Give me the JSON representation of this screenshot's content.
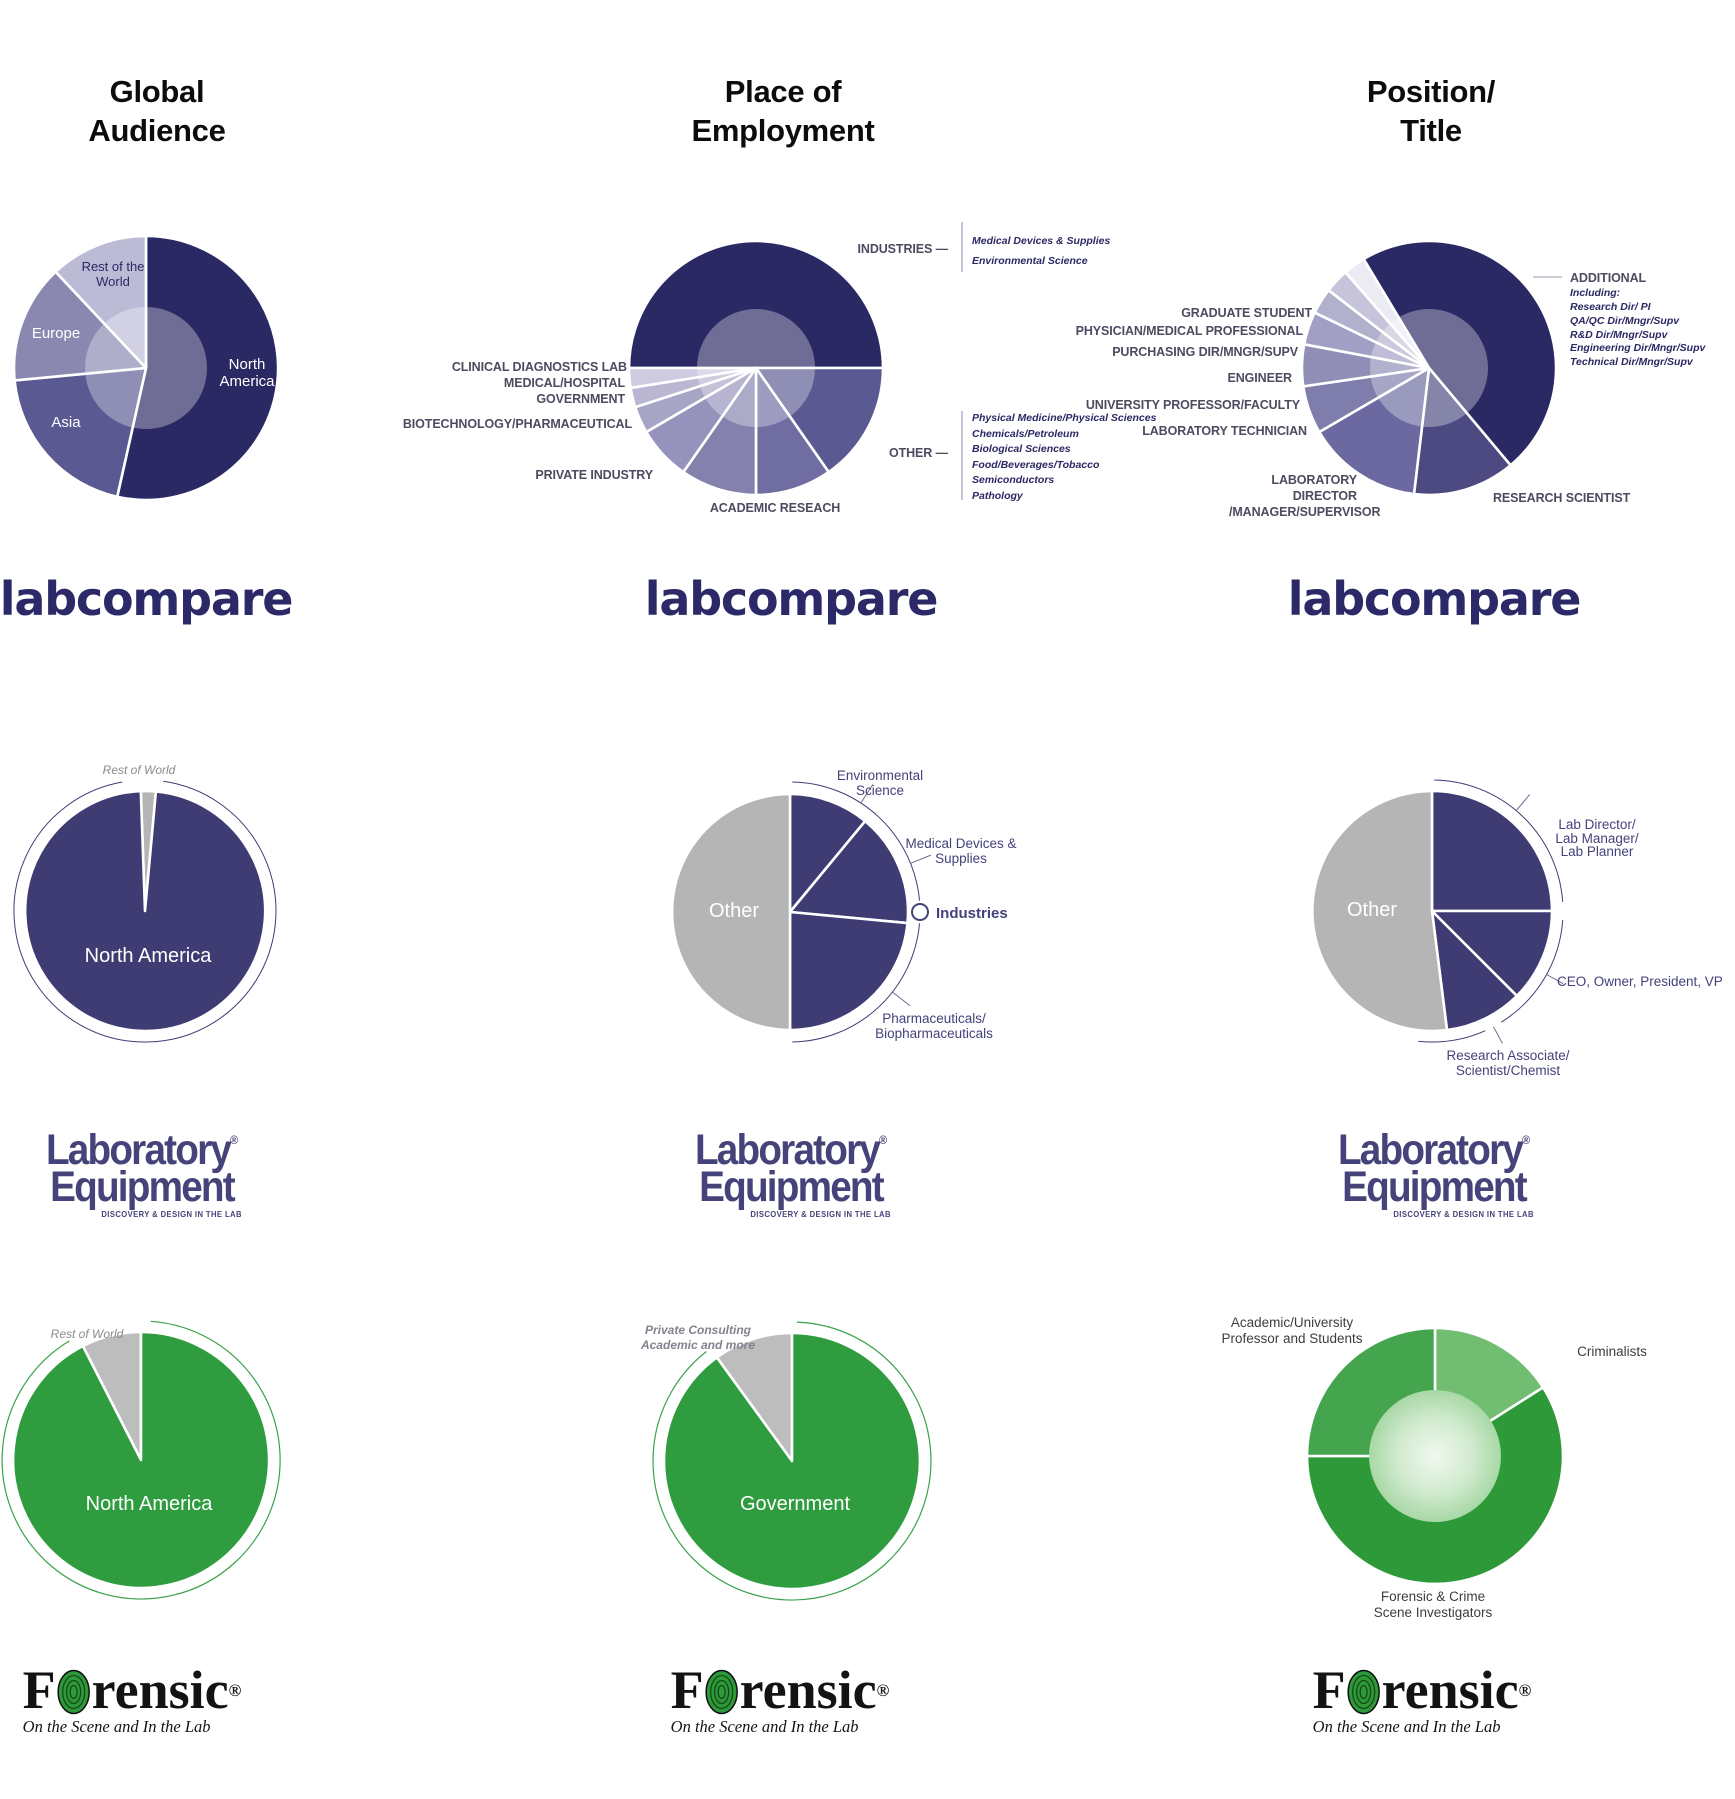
{
  "headers": [
    "Global\nAudience",
    "Place of\nEmployment",
    "Position/\nTitle"
  ],
  "brands": {
    "labcompare": {
      "name": "labcompare"
    },
    "laboratory_equipment": {
      "line1": "Laboratory",
      "reg": "®",
      "line2": "Equipment",
      "tagline": "DISCOVERY & DESIGN IN THE LAB"
    },
    "forensic": {
      "name": "Forensic",
      "part1": "F",
      "part2": "rensic",
      "reg": "®",
      "tagline": "On the Scene and In the Lab"
    }
  },
  "palette": {
    "navy_dark": "#2b2963",
    "navy_mid": "#3e3c72",
    "grey": "#b5b5b6",
    "green": "#2f9c3f",
    "white": "#ffffff"
  },
  "chart_data": [
    {
      "id": "labcompare-global-audience",
      "brand": "Labcompare",
      "title": "Global Audience",
      "type": "pie",
      "legend_position": "on-slices",
      "slices": [
        {
          "label": "North America",
          "value": 53.5,
          "color": "#2b2963"
        },
        {
          "label": "Asia",
          "value": 20,
          "color": "#5b5991"
        },
        {
          "label": "Europe",
          "value": 14.5,
          "color": "#8a88b1"
        },
        {
          "label": "Rest of the World",
          "value": 12,
          "color": "#bcbbd6"
        }
      ]
    },
    {
      "id": "labcompare-place-of-employment",
      "brand": "Labcompare",
      "title": "Place of Employment",
      "type": "pie",
      "legend_position": "callouts",
      "slices": [
        {
          "label": "INDUSTRIES",
          "value": 50,
          "color": "#2b2963"
        },
        {
          "label": "OTHER",
          "value": 15.3,
          "color": "#5b5991"
        },
        {
          "label": "ACADEMIC RESEACH",
          "value": 9.7,
          "color": "#6f6da2"
        },
        {
          "label": "PRIVATE INDUSTRY",
          "value": 9.7,
          "color": "#8482ad"
        },
        {
          "label": "BIOTECHNOLOGY/PHARMACEUTICAL",
          "value": 6.9,
          "color": "#9593bc"
        },
        {
          "label": "GOVERNMENT",
          "value": 3.4,
          "color": "#a7a5c6"
        },
        {
          "label": "MEDICAL/HOSPITAL",
          "value": 2.5,
          "color": "#b9b7d2"
        },
        {
          "label": "CLINICAL DIAGNOSTICS LAB",
          "value": 2.5,
          "color": "#cccbe0"
        }
      ],
      "callouts": {
        "industries_heading": "INDUSTRIES —",
        "industries_items": [
          "Medical Devices & Supplies",
          "Environmental Science"
        ],
        "other_heading": "OTHER —",
        "other_items": [
          "Physical Medicine/Physical Sciences",
          "Chemicals/Petroleum",
          "Biological Sciences",
          "Food/Beverages/Tobacco",
          "Semiconductors",
          "Pathology"
        ]
      }
    },
    {
      "id": "labcompare-position-title",
      "brand": "Labcompare",
      "title": "Position/Title",
      "type": "pie",
      "legend_position": "callouts",
      "slices": [
        {
          "label": "ADDITIONAL",
          "value": 47.5,
          "color": "#2b2963"
        },
        {
          "label": "RESEARCH SCIENTIST",
          "value": 13,
          "color": "#4c4a81"
        },
        {
          "label": "LABORATORY DIRECTOR /MANAGER/SUPERVISOR",
          "value": 14.7,
          "color": "#6b69a0"
        },
        {
          "label": "LABORATORY TECHNICIAN",
          "value": 6.1,
          "color": "#7f7dab"
        },
        {
          "label": "UNIVERSITY PROFESSOR/FACULTY",
          "value": 5.3,
          "color": "#908eb7"
        },
        {
          "label": "ENGINEER",
          "value": 4.2,
          "color": "#a19fc3"
        },
        {
          "label": "PURCHASING DIR/MNGR/SUPV",
          "value": 3.3,
          "color": "#b1b0cd"
        },
        {
          "label": "PHYSICIAN/MEDICAL PROFESSIONAL",
          "value": 3.1,
          "color": "#c5c4da"
        },
        {
          "label": "GRADUATE STUDENT",
          "value": 2.8,
          "color": "#ebebf4"
        }
      ],
      "additional": {
        "including": "Including:",
        "items": [
          "Research Dir/ PI",
          "QA/QC Dir/Mngr/Supv",
          "R&D Dir/Mngr/Supv",
          "Engineering Dir/Mngr/Supv",
          "Technical Dir/Mngr/Supv"
        ]
      }
    },
    {
      "id": "labequipment-global-audience",
      "brand": "Laboratory Equipment",
      "title": "Global Audience",
      "type": "pie",
      "legend_position": "on-slices",
      "slices": [
        {
          "label": "Rest of World",
          "value": 2,
          "color": "#b5b5b6"
        },
        {
          "label": "North America",
          "value": 98,
          "color": "#3e3c72"
        }
      ]
    },
    {
      "id": "labequipment-place-of-employment",
      "brand": "Laboratory Equipment",
      "title": "Place of Employment",
      "type": "pie",
      "legend_position": "callouts",
      "slices": [
        {
          "label": "Environmental Science",
          "value": 11,
          "color": "#3e3c72"
        },
        {
          "label": "Medical Devices & Supplies",
          "value": 15.5,
          "color": "#3e3c72"
        },
        {
          "label": "Pharmaceuticals/ Biopharmaceuticals",
          "value": 23.5,
          "color": "#3e3c72"
        },
        {
          "label": "Other",
          "value": 50,
          "color": "#b5b5b6"
        }
      ],
      "legend": {
        "label": "Industries"
      }
    },
    {
      "id": "labequipment-position-title",
      "brand": "Laboratory Equipment",
      "title": "Position/Title",
      "type": "pie",
      "legend_position": "callouts",
      "slices": [
        {
          "label": "Lab Director/ Lab Manager/ Lab Planner",
          "value": 25,
          "color": "#3e3c72"
        },
        {
          "label": "CEO, Owner, President, VP",
          "value": 12.5,
          "color": "#3e3c72"
        },
        {
          "label": "Research Associate/ Scientist/Chemist",
          "value": 10.5,
          "color": "#3e3c72"
        },
        {
          "label": "Other",
          "value": 52,
          "color": "#b5b5b6"
        }
      ]
    },
    {
      "id": "forensic-global-audience",
      "brand": "Forensic",
      "title": "Global Audience",
      "type": "pie",
      "legend_position": "on-slices",
      "slices": [
        {
          "label": "Rest of World",
          "value": 7.5,
          "color": "#bdbdbd"
        },
        {
          "label": "North America",
          "value": 92.5,
          "color": "#2f9c3f"
        }
      ]
    },
    {
      "id": "forensic-place-of-employment",
      "brand": "Forensic",
      "title": "Place of Employment",
      "type": "pie",
      "legend_position": "on-slices",
      "slices": [
        {
          "label": "Private Consulting Academic and more",
          "value": 10,
          "color": "#bdbdbd"
        },
        {
          "label": "Government",
          "value": 90,
          "color": "#2f9c3f"
        }
      ]
    },
    {
      "id": "forensic-position-title",
      "brand": "Forensic",
      "title": "Position/Title",
      "type": "donut",
      "legend_position": "callouts",
      "slices": [
        {
          "label": "Criminalists",
          "value": 16,
          "color": "#71be72"
        },
        {
          "label": "Forensic & Crime Scene Investigators",
          "value": 59,
          "color": "#2e9939"
        },
        {
          "label": "Academic/University Professor and Students",
          "value": 25,
          "color": "#45a44e"
        }
      ]
    }
  ]
}
